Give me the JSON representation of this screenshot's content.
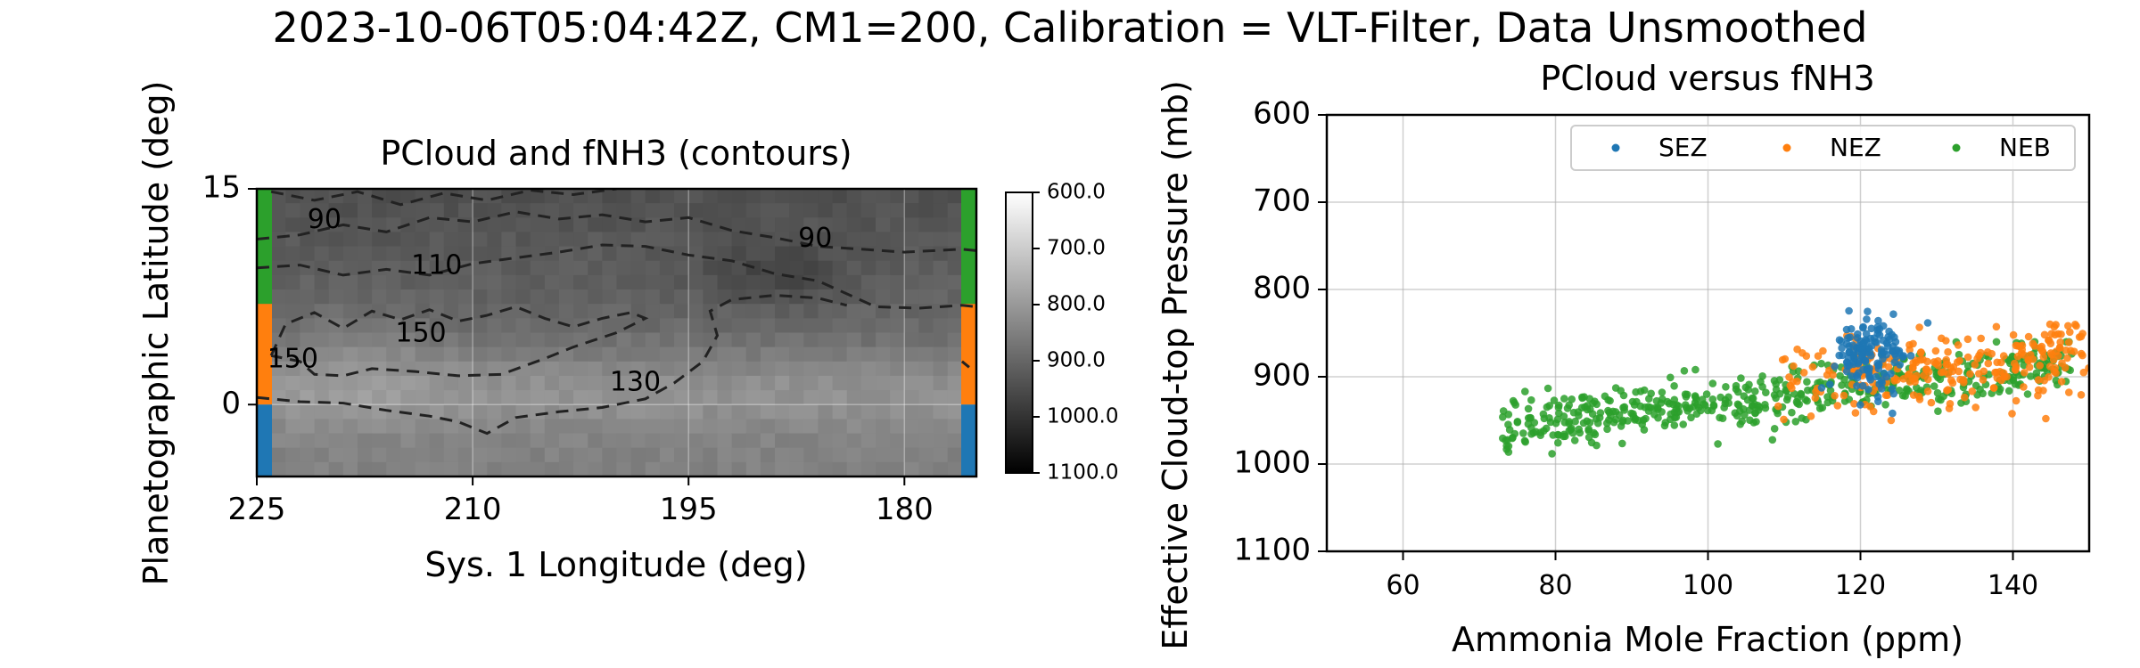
{
  "figure": {
    "suptitle": "2023-10-06T05:04:42Z, CM1=200, Calibration = VLT-Filter, Data Unsmoothed"
  },
  "chart_data": [
    {
      "type": "heatmap",
      "title": "PCloud and fNH3 (contours)",
      "xlabel": "Sys. 1 Longitude (deg)",
      "ylabel": "Planetographic Latitude (deg)",
      "xlim": [
        225,
        175
      ],
      "ylim": [
        -5,
        15
      ],
      "xticks": [
        "225",
        "210",
        "195",
        "180"
      ],
      "yticks": [
        "15",
        "0"
      ],
      "xtick_values": [
        225,
        210,
        195,
        180
      ],
      "ytick_values": [
        15,
        0
      ],
      "colormap": "gray",
      "colorbar": {
        "ticks": [
          "600.0",
          "700.0",
          "800.0",
          "900.0",
          "1000.0",
          "1100.0"
        ],
        "tick_values": [
          600,
          700,
          800,
          900,
          1000,
          1100
        ],
        "range": [
          600,
          1100
        ]
      },
      "contours": [
        {
          "level": "90",
          "label_lon": 220.3,
          "label_lat": 12.8
        },
        {
          "level": "110",
          "label_lon": 212.5,
          "label_lat": 9.6
        },
        {
          "level": "150",
          "label_lon": 213.6,
          "label_lat": 4.9
        },
        {
          "level": "150",
          "label_lon": 222.5,
          "label_lat": 3.1
        },
        {
          "level": "130",
          "label_lon": 198.7,
          "label_lat": 1.5
        },
        {
          "level": "90",
          "label_lon": 186.2,
          "label_lat": 11.5
        }
      ],
      "zone_bands": [
        {
          "name": "NEB",
          "color": "#2ca02c",
          "lat": [
            7,
            15
          ]
        },
        {
          "name": "NEZ",
          "color": "#ff7f0e",
          "lat": [
            0,
            7
          ]
        },
        {
          "name": "SEZ",
          "color": "#1f77b4",
          "lat": [
            -5,
            0
          ]
        }
      ],
      "grid": true
    },
    {
      "type": "scatter",
      "title": "PCloud versus fNH3",
      "xlabel": "Ammonia Mole Fraction (ppm)",
      "ylabel": "Effective Cloud-top Pressure (mb)",
      "xlim": [
        50,
        150
      ],
      "ylim": [
        1100,
        600
      ],
      "xticks": [
        "60",
        "80",
        "100",
        "120",
        "140"
      ],
      "yticks": [
        "600",
        "700",
        "800",
        "900",
        "1000",
        "1100"
      ],
      "xtick_values": [
        60,
        80,
        100,
        120,
        140
      ],
      "ytick_values": [
        600,
        700,
        800,
        900,
        1000,
        1100
      ],
      "legend": {
        "placement": "top-right",
        "columns": 3
      },
      "grid": true,
      "series": [
        {
          "name": "SEZ",
          "color": "#1f77b4",
          "n_points": 140,
          "x_range": [
            111,
            131
          ],
          "y_range": [
            800,
            950
          ],
          "x_center": 121,
          "y_center": 875
        },
        {
          "name": "NEZ",
          "color": "#ff7f0e",
          "n_points": 260,
          "x_range": [
            108,
            150
          ],
          "y_range": [
            805,
            970
          ],
          "x_center": 133,
          "y_center": 895
        },
        {
          "name": "NEB",
          "color": "#2ca02c",
          "n_points": 520,
          "x_range": [
            73,
            148
          ],
          "y_range": [
            860,
            1010
          ],
          "x_center": 100,
          "y_center": 925
        }
      ]
    }
  ]
}
